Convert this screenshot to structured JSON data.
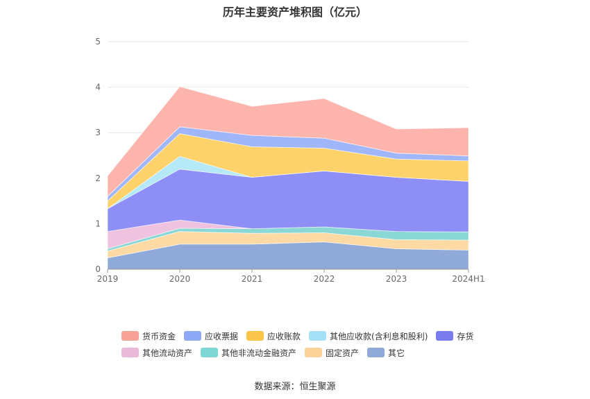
{
  "chart_data": {
    "type": "area",
    "stacked": true,
    "title": "历年主要资产堆积图（亿元）",
    "categories": [
      "2019",
      "2020",
      "2021",
      "2022",
      "2023",
      "2024H1"
    ],
    "ylim": [
      0,
      5
    ],
    "yticks": [
      0,
      1,
      2,
      3,
      4,
      5
    ],
    "grid": true,
    "legend_position": "bottom",
    "series": [
      {
        "name": "其它",
        "color": "#8fa9d8",
        "values": [
          0.25,
          0.55,
          0.55,
          0.6,
          0.45,
          0.42
        ]
      },
      {
        "name": "固定资产",
        "color": "#fdd9a3",
        "values": [
          0.15,
          0.28,
          0.24,
          0.2,
          0.2,
          0.22
        ]
      },
      {
        "name": "其他非流动金融资产",
        "color": "#8ad8d5",
        "values": [
          0.05,
          0.07,
          0.1,
          0.13,
          0.18,
          0.18
        ]
      },
      {
        "name": "其他流动资产",
        "color": "#efc3e0",
        "values": [
          0.38,
          0.18,
          0.0,
          0.0,
          0.0,
          0.0
        ]
      },
      {
        "name": "存货",
        "color": "#8e8ff6",
        "values": [
          0.5,
          1.12,
          1.13,
          1.23,
          1.19,
          1.11
        ]
      },
      {
        "name": "其他应收款(含利息和股利)",
        "color": "#b6e9f8",
        "values": [
          0.0,
          0.28,
          0.0,
          0.0,
          0.0,
          0.0
        ]
      },
      {
        "name": "应收账款",
        "color": "#fdd26b",
        "values": [
          0.17,
          0.5,
          0.67,
          0.5,
          0.4,
          0.45
        ]
      },
      {
        "name": "应收票据",
        "color": "#9fb7fa",
        "values": [
          0.1,
          0.15,
          0.25,
          0.22,
          0.13,
          0.11
        ]
      },
      {
        "name": "货币资金",
        "color": "#fdb4ad",
        "values": [
          0.45,
          0.88,
          0.64,
          0.87,
          0.53,
          0.62
        ]
      }
    ],
    "legend_rows": [
      [
        {
          "name": "货币资金",
          "color": "#f8a397"
        },
        {
          "name": "应收票据",
          "color": "#8fa9f7"
        },
        {
          "name": "应收账款",
          "color": "#f9c54a"
        },
        {
          "name": "其他应收款(含利息和股利)",
          "color": "#a5e1f6"
        },
        {
          "name": "存货",
          "color": "#7b7bf0"
        }
      ],
      [
        {
          "name": "其他流动资产",
          "color": "#eab8d8"
        },
        {
          "name": "其他非流动金融资产",
          "color": "#7fd7d4"
        },
        {
          "name": "固定资产",
          "color": "#fcd49b"
        },
        {
          "name": "其它",
          "color": "#8fa9d8"
        }
      ]
    ]
  },
  "source": "数据来源：恒生聚源"
}
